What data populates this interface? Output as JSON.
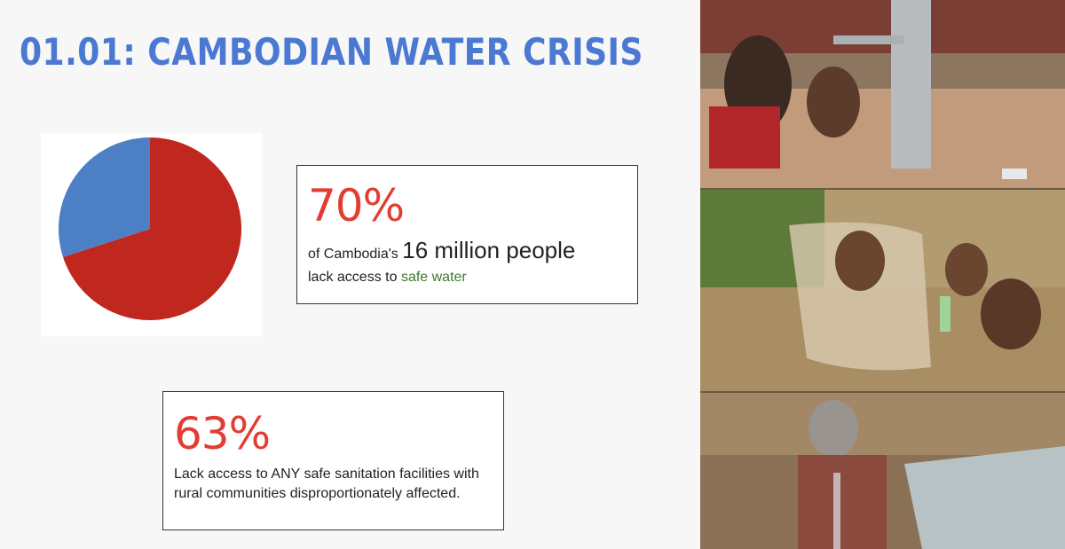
{
  "slide": {
    "title": "01.01: CAMBODIAN WATER CRISIS"
  },
  "chart_data": {
    "type": "pie",
    "categories": [
      "",
      ""
    ],
    "values": [
      70,
      30
    ],
    "colors": [
      "#c0271f",
      "#4d7fc4"
    ],
    "title": ""
  },
  "stat1": {
    "percent": "70%",
    "prefix": "of Cambodia's",
    "emphasis": "16 million people",
    "line2_prefix": "lack access to",
    "line2_highlight": "safe water"
  },
  "stat2": {
    "percent": "63%",
    "description": "Lack access to ANY safe sanitation facilities with rural communities disproportionately affected."
  },
  "colors": {
    "title": "#4b79d2",
    "percent": "#e33c32",
    "highlight": "#3c7a2c"
  }
}
